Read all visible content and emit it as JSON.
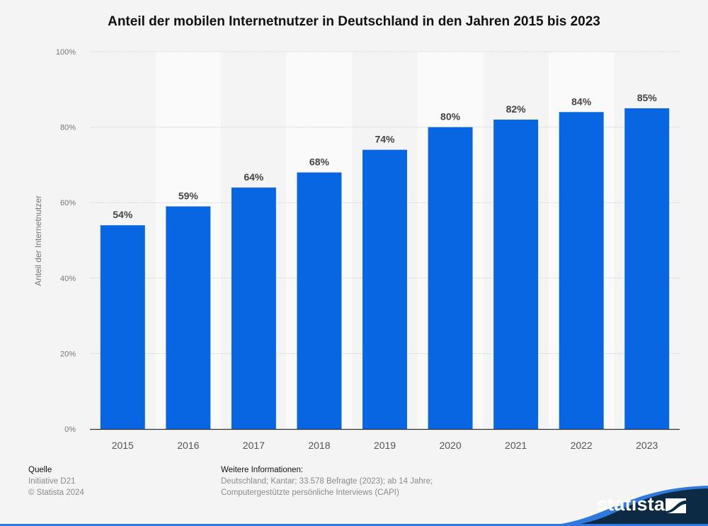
{
  "chart_data": {
    "type": "bar",
    "title": "Anteil der mobilen Internetnutzer in Deutschland in den Jahren 2015 bis 2023",
    "xlabel": "",
    "ylabel": "Anteil der Internetnutzer",
    "categories": [
      "2015",
      "2016",
      "2017",
      "2018",
      "2019",
      "2020",
      "2021",
      "2022",
      "2023"
    ],
    "values": [
      54,
      59,
      64,
      68,
      74,
      80,
      82,
      84,
      85
    ],
    "data_labels": [
      "54%",
      "59%",
      "64%",
      "68%",
      "74%",
      "80%",
      "82%",
      "84%",
      "85%"
    ],
    "ylim": [
      0,
      100
    ],
    "yticks": [
      0,
      20,
      40,
      60,
      80,
      100
    ],
    "ytick_labels": [
      "0%",
      "20%",
      "40%",
      "60%",
      "80%",
      "100%"
    ],
    "grid": true,
    "bar_color": "#0866e3",
    "legend": "none"
  },
  "footer": {
    "source_heading": "Quelle",
    "source_lines": [
      "Initiative D21",
      "© Statista 2024"
    ],
    "info_heading": "Weitere Informationen:",
    "info_lines": [
      "Deutschland; Kantar; 33.578 Befragte (2023); ab 14 Jahre;",
      "Computergestützte persönliche Interviews (CAPI)"
    ]
  },
  "brand": {
    "logo_text": "statista",
    "navy": "#0c2a43",
    "accent": "#2f78de"
  }
}
